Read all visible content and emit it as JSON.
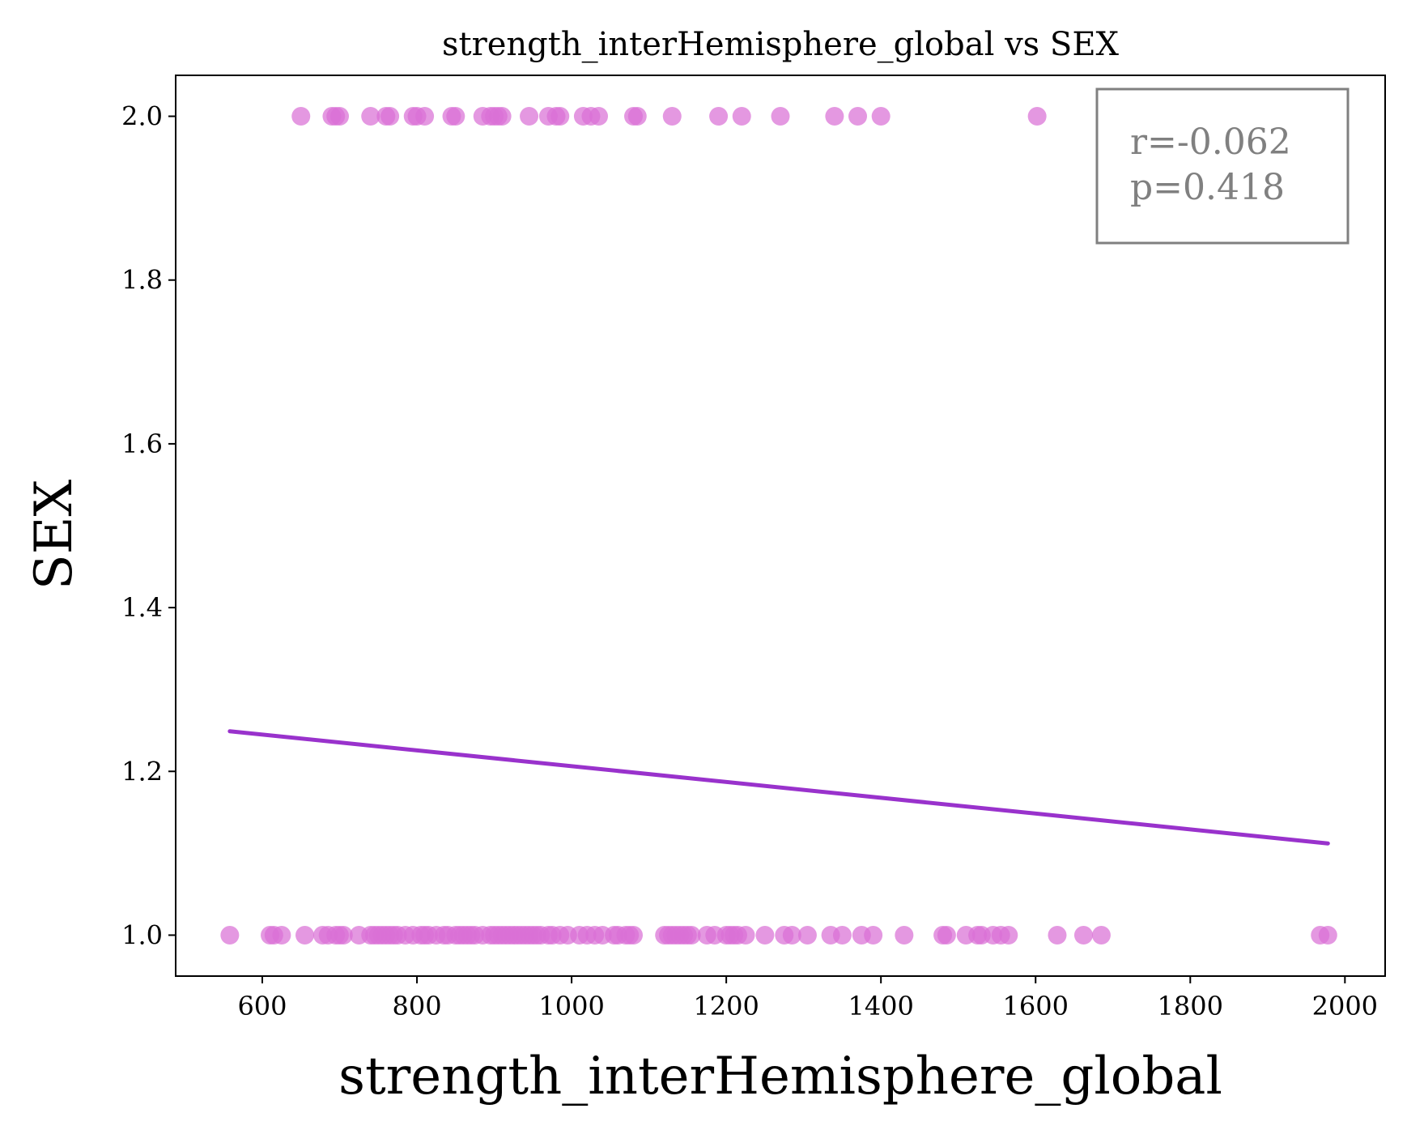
{
  "chart_data": {
    "type": "scatter",
    "title": "strength_interHemisphere_global vs SEX",
    "xlabel": "strength_interHemisphere_global",
    "ylabel": "SEX",
    "xlim": [
      488,
      2052
    ],
    "ylim": [
      0.95,
      2.05
    ],
    "xticks": [
      600,
      800,
      1000,
      1200,
      1400,
      1600,
      1800,
      2000
    ],
    "yticks": [
      1.0,
      1.2,
      1.4,
      1.6,
      1.8,
      2.0
    ],
    "ytick_labels": [
      "1.0",
      "1.2",
      "1.4",
      "1.6",
      "1.8",
      "2.0"
    ],
    "grid": false,
    "colors": {
      "points": "#da70d6",
      "fit_line": "#9932cc",
      "stats_box": "#808080"
    },
    "points_sex2_x": [
      650,
      690,
      695,
      700,
      740,
      760,
      765,
      795,
      800,
      810,
      845,
      850,
      885,
      895,
      900,
      905,
      910,
      945,
      970,
      980,
      985,
      1015,
      1025,
      1035,
      1080,
      1085,
      1130,
      1190,
      1220,
      1270,
      1340,
      1370,
      1400,
      1602
    ],
    "points_sex1_x": [
      558,
      610,
      615,
      625,
      655,
      678,
      685,
      695,
      700,
      705,
      725,
      740,
      745,
      750,
      755,
      760,
      765,
      770,
      775,
      785,
      795,
      805,
      810,
      815,
      825,
      835,
      840,
      850,
      855,
      860,
      865,
      870,
      875,
      885,
      895,
      900,
      905,
      910,
      915,
      920,
      925,
      930,
      935,
      940,
      945,
      950,
      955,
      960,
      970,
      975,
      985,
      995,
      1010,
      1020,
      1030,
      1040,
      1055,
      1060,
      1070,
      1075,
      1080,
      1120,
      1125,
      1130,
      1135,
      1140,
      1145,
      1150,
      1155,
      1175,
      1185,
      1200,
      1205,
      1210,
      1215,
      1225,
      1250,
      1275,
      1285,
      1305,
      1335,
      1350,
      1375,
      1390,
      1430,
      1480,
      1485,
      1510,
      1525,
      1530,
      1545,
      1555,
      1565,
      1628,
      1662,
      1685,
      1968,
      1978
    ],
    "fit_line": {
      "x": [
        558,
        1978
      ],
      "y": [
        1.249,
        1.112
      ]
    },
    "stats": {
      "r_label": "r=-0.062",
      "p_label": "p=0.418"
    }
  }
}
